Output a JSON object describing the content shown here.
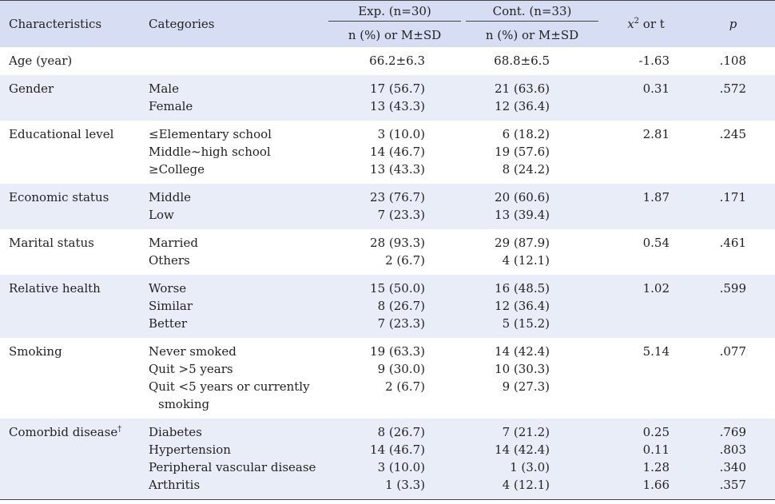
{
  "header": {
    "characteristics": "Characteristics",
    "categories": "Categories",
    "exp_group": "Exp. (n=30)",
    "cont_group": "Cont. (n=33)",
    "exp_sub": "n (%) or M±SD",
    "cont_sub": "n (%) or M±SD",
    "stat_symbol": "x",
    "stat_sup": "2",
    "stat_rest": " or t",
    "p": "p"
  },
  "rows": [
    {
      "characteristic": "Age (year)",
      "categories": [
        ""
      ],
      "exp": [
        "66.2±6.3"
      ],
      "cont": [
        "68.8±6.5"
      ],
      "stat": [
        "-1.63"
      ],
      "p": [
        ".108"
      ]
    },
    {
      "characteristic": "Gender",
      "categories": [
        "Male",
        "Female"
      ],
      "exp": [
        "17 (56.7)",
        "13 (43.3)"
      ],
      "cont": [
        "21 (63.6)",
        "12 (36.4)"
      ],
      "stat": [
        "0.31"
      ],
      "p": [
        ".572"
      ]
    },
    {
      "characteristic": "Educational level",
      "categories": [
        "≤Elementary school",
        "Middle~high school",
        "≥College"
      ],
      "exp": [
        "3 (10.0)",
        "14 (46.7)",
        "13 (43.3)"
      ],
      "cont": [
        "6 (18.2)",
        "19 (57.6)",
        "8 (24.2)"
      ],
      "stat": [
        "2.81"
      ],
      "p": [
        ".245"
      ]
    },
    {
      "characteristic": "Economic status",
      "categories": [
        "Middle",
        "Low"
      ],
      "exp": [
        "23 (76.7)",
        "7 (23.3)"
      ],
      "cont": [
        "20 (60.6)",
        "13 (39.4)"
      ],
      "stat": [
        "1.87"
      ],
      "p": [
        ".171"
      ]
    },
    {
      "characteristic": "Marital status",
      "categories": [
        "Married",
        "Others"
      ],
      "exp": [
        "28 (93.3)",
        "2 (6.7)"
      ],
      "cont": [
        "29 (87.9)",
        "4 (12.1)"
      ],
      "stat": [
        "0.54"
      ],
      "p": [
        ".461"
      ]
    },
    {
      "characteristic": "Relative health",
      "categories": [
        "Worse",
        "Similar",
        "Better"
      ],
      "exp": [
        "15 (50.0)",
        "8 (26.7)",
        "7 (23.3)"
      ],
      "cont": [
        "16 (48.5)",
        "12 (36.4)",
        "5 (15.2)"
      ],
      "stat": [
        "1.02"
      ],
      "p": [
        ".599"
      ]
    },
    {
      "characteristic": "Smoking",
      "categories": [
        "Never smoked",
        "Quit >5 years",
        "Quit <5 years or currently",
        "smoking"
      ],
      "exp": [
        "19 (63.3)",
        "9 (30.0)",
        "2 (6.7)"
      ],
      "cont": [
        "14 (42.4)",
        "10 (30.3)",
        "9 (27.3)"
      ],
      "stat": [
        "5.14"
      ],
      "p": [
        ".077"
      ]
    },
    {
      "characteristic": "Comorbid disease",
      "char_sup": "†",
      "categories": [
        "Diabetes",
        "Hypertension",
        "Peripheral vascular disease",
        "Arthritis"
      ],
      "exp": [
        "8 (26.7)",
        "14 (46.7)",
        "3 (10.0)",
        "1 (3.3)"
      ],
      "cont": [
        "7 (21.2)",
        "14 (42.4)",
        "1 (3.0)",
        "4 (12.1)"
      ],
      "stat": [
        "0.25",
        "0.11",
        "1.28",
        "1.66"
      ],
      "p": [
        ".769",
        ".803",
        ".340",
        ".357"
      ]
    }
  ]
}
